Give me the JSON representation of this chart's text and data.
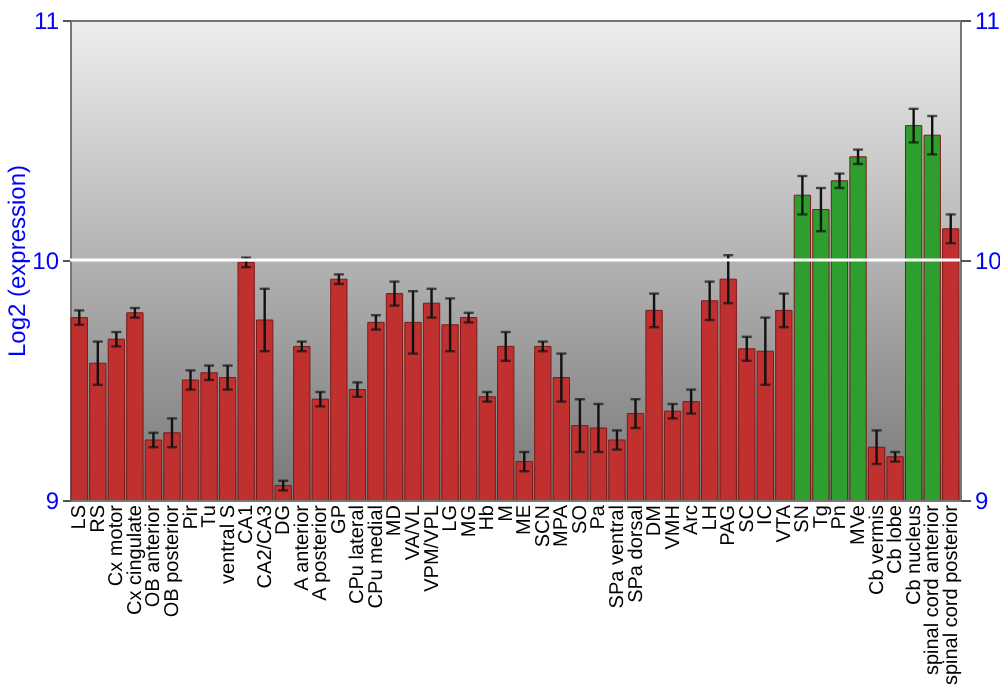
{
  "chart_data": {
    "type": "bar",
    "ylabel": "Log2 (expression)",
    "categories": [
      "LS",
      "RS",
      "Cx motor",
      "Cx cingulate",
      "OB anterior",
      "OB posterior",
      "Pir",
      "Tu",
      "ventral S",
      "CA1",
      "CA2/CA3",
      "DG",
      "A anterior",
      "A posterior",
      "GP",
      "CPu lateral",
      "CPu medial",
      "MD",
      "VA/VL",
      "VPM/VPL",
      "LG",
      "MG",
      "Hb",
      "M",
      "ME",
      "SCN",
      "MPA",
      "SO",
      "Pa",
      "SPa ventral",
      "SPa dorsal",
      "DM",
      "VMH",
      "Arc",
      "LH",
      "PAG",
      "SC",
      "IC",
      "VTA",
      "SN",
      "Tg",
      "Pn",
      "MVe",
      "Cb vermis",
      "Cb lobe",
      "Cb nucleus",
      "spinal cord anterior",
      "spinal cord posterior"
    ],
    "values": [
      9.76,
      9.57,
      9.67,
      9.78,
      9.25,
      9.28,
      9.5,
      9.53,
      9.51,
      9.99,
      9.75,
      9.06,
      9.64,
      9.42,
      9.92,
      9.46,
      9.74,
      9.86,
      9.74,
      9.82,
      9.73,
      9.76,
      9.43,
      9.64,
      9.16,
      9.64,
      9.51,
      9.31,
      9.3,
      9.25,
      9.36,
      9.79,
      9.37,
      9.41,
      9.83,
      9.92,
      9.63,
      9.62,
      9.79,
      10.27,
      10.21,
      10.33,
      10.43,
      9.22,
      9.18,
      10.56,
      10.52,
      10.13
    ],
    "errors": [
      0.03,
      0.09,
      0.03,
      0.02,
      0.03,
      0.06,
      0.04,
      0.03,
      0.05,
      0.02,
      0.13,
      0.02,
      0.02,
      0.03,
      0.02,
      0.03,
      0.03,
      0.05,
      0.13,
      0.06,
      0.11,
      0.02,
      0.02,
      0.06,
      0.04,
      0.02,
      0.1,
      0.11,
      0.1,
      0.04,
      0.06,
      0.07,
      0.03,
      0.05,
      0.08,
      0.1,
      0.05,
      0.14,
      0.07,
      0.08,
      0.09,
      0.03,
      0.03,
      0.07,
      0.02,
      0.07,
      0.08,
      0.06
    ],
    "colors": [
      "#c0302f",
      "#c0302f",
      "#c0302f",
      "#c0302f",
      "#c0302f",
      "#c0302f",
      "#c0302f",
      "#c0302f",
      "#c0302f",
      "#c0302f",
      "#c0302f",
      "#c0302f",
      "#c0302f",
      "#c0302f",
      "#c0302f",
      "#c0302f",
      "#c0302f",
      "#c0302f",
      "#c0302f",
      "#c0302f",
      "#c0302f",
      "#c0302f",
      "#c0302f",
      "#c0302f",
      "#c0302f",
      "#c0302f",
      "#c0302f",
      "#c0302f",
      "#c0302f",
      "#c0302f",
      "#c0302f",
      "#c0302f",
      "#c0302f",
      "#c0302f",
      "#c0302f",
      "#c0302f",
      "#c0302f",
      "#c0302f",
      "#c0302f",
      "#2e9e2e",
      "#2e9e2e",
      "#2e9e2e",
      "#2e9e2e",
      "#c0302f",
      "#c0302f",
      "#2e9e2e",
      "#2e9e2e",
      "#c0302f"
    ],
    "ylim": [
      9,
      11
    ],
    "yticks": [
      9,
      10,
      11
    ],
    "y2lim": [
      9,
      11
    ],
    "y2ticks": [
      9,
      10,
      11
    ],
    "grid": "y"
  }
}
